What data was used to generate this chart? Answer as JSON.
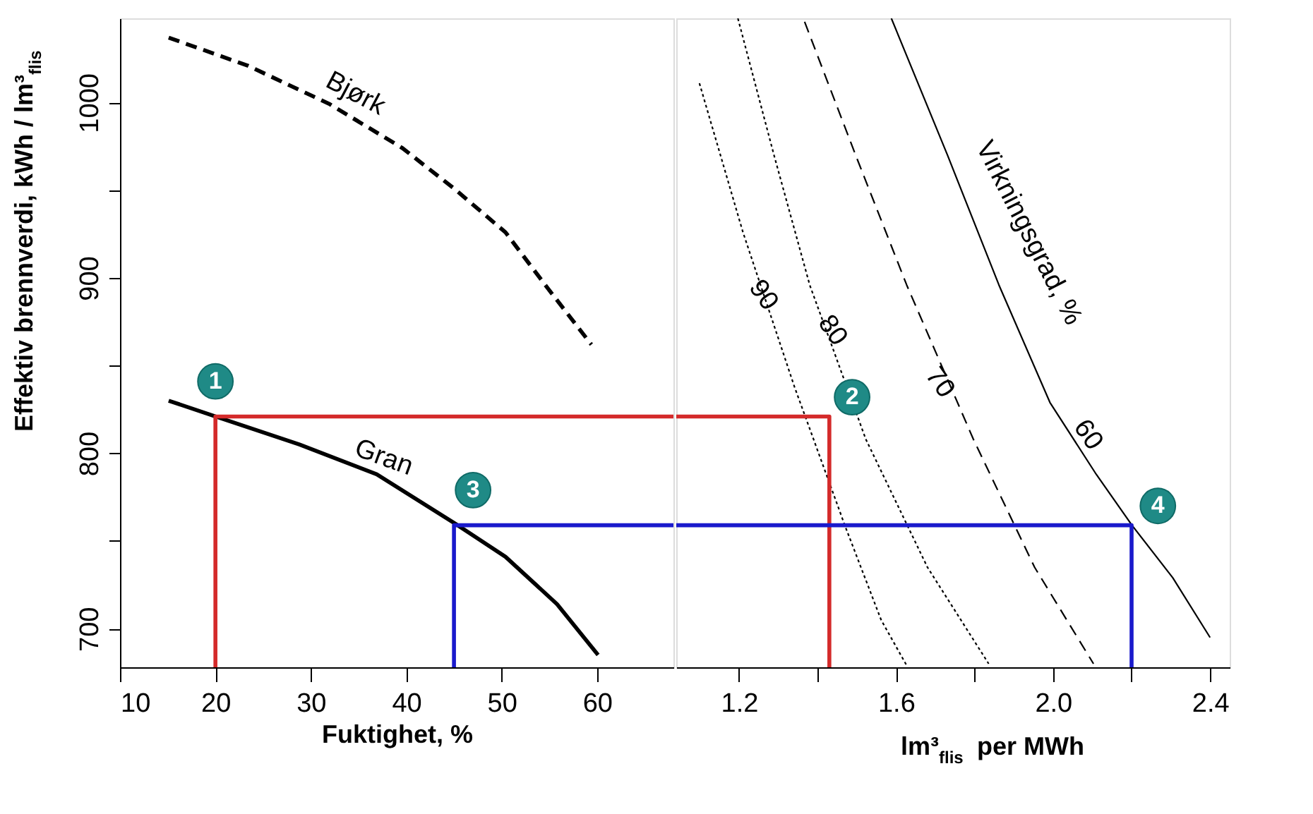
{
  "chart_data": [
    {
      "type": "line",
      "xlabel": "Fuktighet, %",
      "ylabel": "Effektiv brennverdi, kWh / lm³$_{flis}$",
      "xlim": [
        10,
        68
      ],
      "xticks": [
        10,
        20,
        30,
        40,
        50,
        60
      ],
      "ylim": [
        678,
        1048
      ],
      "yticks": [
        700,
        {
          "value": 750,
          "label": null
        },
        800,
        {
          "value": 850,
          "label": null
        },
        900,
        {
          "value": 950,
          "label": null
        },
        1000
      ],
      "grid": false,
      "series": [
        {
          "color": "#000000",
          "line_style": "dashed",
          "x": [
            15.1,
            23.4,
            32.0,
            39.6,
            45.0,
            50.4,
            54.7,
            59.4
          ],
          "values": [
            1037,
            1021,
            999,
            974,
            951,
            926,
            895,
            862
          ]
        },
        {
          "color": "#000000",
          "line_style": "solid",
          "x": [
            15.1,
            20.0,
            28.8,
            36.9,
            45.1,
            50.4,
            55.8,
            60.1
          ],
          "values": [
            830,
            821,
            805,
            788,
            760,
            741,
            714,
            685
          ]
        },
        {
          "color": "#d42a2a",
          "line_style": "solid",
          "x": [
            20,
            20,
            68
          ],
          "values": [
            678,
            821,
            821
          ]
        },
        {
          "color": "#1a1acc",
          "line_style": "solid",
          "x": [
            45,
            45,
            68
          ],
          "values": [
            678,
            759,
            759
          ]
        }
      ],
      "annotations": [
        "Bjørk",
        "Gran",
        {
          "text": "1",
          "x": 20.0,
          "y": 841
        },
        {
          "text": "3",
          "x": 47.0,
          "y": 779
        }
      ]
    },
    {
      "type": "line",
      "xlabel": "lm³$_{flis}$ per MWh",
      "xlim": [
        1.04,
        2.45
      ],
      "xticks": [
        1.2,
        {
          "value": 1.4,
          "label": null
        },
        1.6,
        {
          "value": 1.8,
          "label": null
        },
        {
          "value": 2.0,
          "label": "2.0"
        },
        {
          "value": 2.2,
          "label": null
        },
        2.4
      ],
      "ylim": [
        678,
        1048
      ],
      "tick_labels": "x",
      "grid": false,
      "series": [
        {
          "color": "#000000",
          "line_style": "dotted",
          "x": [
            1.099,
            1.21,
            1.341,
            1.471,
            1.562,
            1.627
          ],
          "values": [
            1011,
            926,
            838,
            758,
            705,
            679
          ]
        },
        {
          "color": "#000000",
          "line_style": "dotted",
          "x": [
            1.197,
            1.289,
            1.38,
            1.523,
            1.68,
            1.836
          ],
          "values": [
            1048,
            970,
            896,
            808,
            735,
            680
          ]
        },
        {
          "color": "#000000",
          "line_style": "dashed",
          "x": [
            1.367,
            1.497,
            1.627,
            1.797,
            1.953,
            2.103
          ],
          "values": [
            1046,
            970,
            896,
            808,
            735,
            680
          ]
        },
        {
          "color": "#000000",
          "line_style": "solid",
          "x": [
            1.588,
            1.731,
            1.862,
            1.992,
            2.11,
            2.201,
            2.305,
            2.4
          ],
          "values": [
            1048,
            970,
            896,
            829,
            788,
            759,
            729,
            695
          ]
        },
        {
          "color": "#d42a2a",
          "line_style": "solid",
          "x": [
            1.04,
            1.43,
            1.43
          ],
          "values": [
            821,
            821,
            678
          ]
        },
        {
          "color": "#1a1acc",
          "line_style": "solid",
          "x": [
            1.04,
            2.2,
            2.2
          ],
          "values": [
            759,
            759,
            678
          ]
        }
      ],
      "annotations": [
        {
          "text": "2",
          "x": 1.488,
          "y": 832
        },
        {
          "text": "4",
          "x": 2.267,
          "y": 770
        },
        "90",
        "80",
        "70",
        "60",
        "Virkningsgrad, %"
      ]
    }
  ]
}
